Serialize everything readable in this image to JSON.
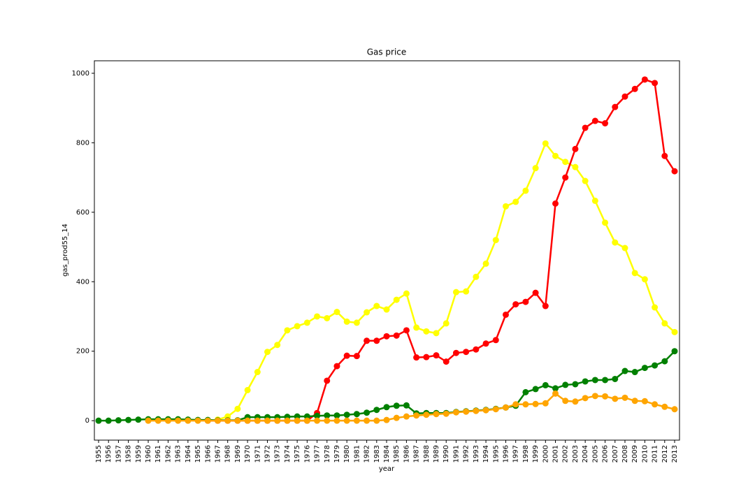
{
  "chart_data": {
    "type": "line",
    "title": "Gas price",
    "x_label": "year",
    "y_label": "gas_prod55_14",
    "categories": [
      1955,
      1956,
      1957,
      1958,
      1959,
      1960,
      1961,
      1962,
      1963,
      1964,
      1965,
      1966,
      1967,
      1968,
      1969,
      1970,
      1971,
      1972,
      1973,
      1974,
      1975,
      1976,
      1977,
      1978,
      1979,
      1980,
      1981,
      1982,
      1983,
      1984,
      1985,
      1986,
      1987,
      1988,
      1989,
      1990,
      1991,
      1992,
      1993,
      1994,
      1995,
      1996,
      1997,
      1998,
      1999,
      2000,
      2001,
      2002,
      2003,
      2004,
      2005,
      2006,
      2007,
      2008,
      2009,
      2010,
      2011,
      2012,
      2013
    ],
    "series": [
      {
        "color": "#ffff00",
        "values": [
          null,
          null,
          null,
          null,
          null,
          null,
          null,
          null,
          null,
          null,
          null,
          null,
          3,
          12,
          34,
          88,
          140,
          198,
          218,
          260,
          272,
          282,
          300,
          295,
          313,
          285,
          282,
          312,
          330,
          320,
          348,
          366,
          268,
          257,
          252,
          280,
          370,
          372,
          414,
          452,
          520,
          617,
          630,
          662,
          727,
          798,
          762,
          745,
          730,
          690,
          633,
          570,
          513,
          497,
          425,
          407,
          326,
          280,
          255
        ]
      },
      {
        "color": "#ff0000",
        "values": [
          null,
          null,
          null,
          null,
          null,
          null,
          null,
          null,
          null,
          null,
          null,
          0,
          0,
          0,
          0,
          0,
          0,
          0,
          0,
          0,
          0,
          0,
          22,
          115,
          157,
          187,
          186,
          230,
          230,
          243,
          245,
          260,
          182,
          183,
          188,
          170,
          195,
          198,
          205,
          222,
          232,
          305,
          335,
          342,
          368,
          330,
          625,
          700,
          782,
          843,
          863,
          856,
          903,
          933,
          955,
          982,
          972,
          762,
          718
        ]
      },
      {
        "color": "#008000",
        "values": [
          0,
          0,
          1,
          2,
          3,
          4,
          4,
          4,
          4,
          3,
          2,
          2,
          1,
          1,
          1,
          10,
          10,
          10,
          10,
          11,
          12,
          12,
          14,
          15,
          15,
          17,
          19,
          23,
          31,
          39,
          43,
          44,
          21,
          22,
          22,
          22,
          25,
          27,
          29,
          31,
          34,
          38,
          43,
          82,
          91,
          102,
          93,
          103,
          105,
          113,
          117,
          117,
          120,
          143,
          140,
          152,
          159,
          171,
          200
        ]
      },
      {
        "color": "#ffa500",
        "values": [
          null,
          null,
          null,
          null,
          null,
          0,
          0,
          0,
          0,
          0,
          0,
          0,
          0,
          0,
          0,
          0,
          0,
          0,
          0,
          0,
          0,
          0,
          0,
          0,
          0,
          0,
          0,
          0,
          0,
          2,
          8,
          12,
          15,
          17,
          19,
          20,
          24,
          26,
          28,
          30,
          33,
          38,
          47,
          47,
          48,
          50,
          78,
          57,
          55,
          65,
          71,
          70,
          63,
          66,
          57,
          56,
          47,
          40,
          33
        ]
      }
    ],
    "ylim": [
      -56,
      1036
    ],
    "yticks": [
      0,
      200,
      400,
      600,
      800,
      1000
    ]
  }
}
